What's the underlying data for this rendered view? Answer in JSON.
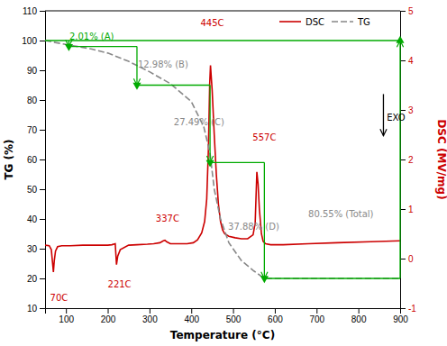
{
  "chart_data": {
    "type": "line",
    "xlabel": "Temperature (°C)",
    "ylabel": "TG (%)",
    "y2label": "DSC (MV/mg)",
    "xlim": [
      50,
      900
    ],
    "xticks": [
      100,
      200,
      300,
      400,
      500,
      600,
      700,
      800,
      900
    ],
    "ylim": [
      10,
      110
    ],
    "yticks": [
      10,
      20,
      30,
      40,
      50,
      60,
      70,
      80,
      90,
      100,
      110
    ],
    "y2lim": [
      -1,
      5
    ],
    "y2ticks": [
      -1,
      0,
      1,
      2,
      3,
      4,
      5
    ],
    "grid": false,
    "legend": "upper right",
    "series": [
      {
        "name": "DSC",
        "color": "#cc0000",
        "line_style": "solid",
        "axis": "y2",
        "x": [
          50,
          60,
          65,
          70,
          72,
          75,
          80,
          90,
          110,
          140,
          170,
          200,
          210,
          218,
          221,
          224,
          230,
          250,
          270,
          295,
          310,
          325,
          333,
          337,
          341,
          350,
          370,
          390,
          405,
          415,
          425,
          432,
          437,
          441,
          444,
          446,
          450,
          455,
          460,
          465,
          470,
          475,
          480,
          490,
          505,
          520,
          535,
          548,
          553,
          557,
          560,
          563,
          568,
          572,
          578,
          590,
          620,
          680,
          750,
          830,
          900
        ],
        "values": [
          0.27,
          0.26,
          0.18,
          -0.27,
          -0.05,
          0.15,
          0.24,
          0.26,
          0.26,
          0.27,
          0.27,
          0.27,
          0.28,
          0.3,
          -0.12,
          0.05,
          0.18,
          0.27,
          0.28,
          0.29,
          0.3,
          0.32,
          0.36,
          0.37,
          0.34,
          0.3,
          0.3,
          0.3,
          0.32,
          0.38,
          0.52,
          0.75,
          1.2,
          2.2,
          3.5,
          3.9,
          3.4,
          2.5,
          1.7,
          1.1,
          0.75,
          0.58,
          0.5,
          0.45,
          0.42,
          0.4,
          0.4,
          0.48,
          0.72,
          1.75,
          1.5,
          1.0,
          0.5,
          0.35,
          0.3,
          0.28,
          0.28,
          0.3,
          0.32,
          0.34,
          0.36
        ]
      },
      {
        "name": "TG",
        "color": "#888888",
        "line_style": "dashed",
        "x": [
          50,
          80,
          120,
          160,
          200,
          250,
          300,
          350,
          400,
          430,
          445,
          455,
          470,
          490,
          520,
          550,
          565,
          575,
          590,
          700,
          800,
          900
        ],
        "values": [
          100,
          99.2,
          98.2,
          97.2,
          95.8,
          93.0,
          89.5,
          85.5,
          79.5,
          71.0,
          62.0,
          50.0,
          40.0,
          32.0,
          26.0,
          22.5,
          21.0,
          20.2,
          20.0,
          20.0,
          20.0,
          20.0
        ]
      }
    ],
    "steps": {
      "color": "#00aa00",
      "x": [
        50,
        107,
        270,
        445,
        575,
        900
      ],
      "values": [
        100,
        98,
        85,
        59,
        20,
        100
      ]
    },
    "annotations": [
      {
        "text": "2.01% (A)",
        "x": 108,
        "y": 100.3,
        "color": "#00aa00"
      },
      {
        "text": "12.98% (B)",
        "x": 272,
        "y": 91.0,
        "color": "#888888"
      },
      {
        "text": "27.49% (C)",
        "x": 358,
        "y": 71.5,
        "color": "#888888"
      },
      {
        "text": "37.88% (D)",
        "x": 488,
        "y": 36.5,
        "color": "#888888"
      },
      {
        "text": "80.55% (Total)",
        "x": 680,
        "y": 40.5,
        "color": "#888888"
      },
      {
        "text": "70C",
        "x": 62,
        "y": 12.5,
        "color": "#cc0000"
      },
      {
        "text": "221C",
        "x": 200,
        "y": 17.0,
        "color": "#cc0000"
      },
      {
        "text": "337C",
        "x": 315,
        "y": 39.0,
        "color": "#cc0000"
      },
      {
        "text": "445C",
        "x": 422,
        "y": 105.0,
        "color": "#cc0000"
      },
      {
        "text": "557C",
        "x": 547,
        "y": 66.5,
        "color": "#cc0000"
      },
      {
        "text": "EXO",
        "x": 868,
        "y": 74,
        "color": "#000000",
        "arrow": {
          "x": 860,
          "y_from": 82,
          "y_to": 68
        }
      }
    ]
  }
}
